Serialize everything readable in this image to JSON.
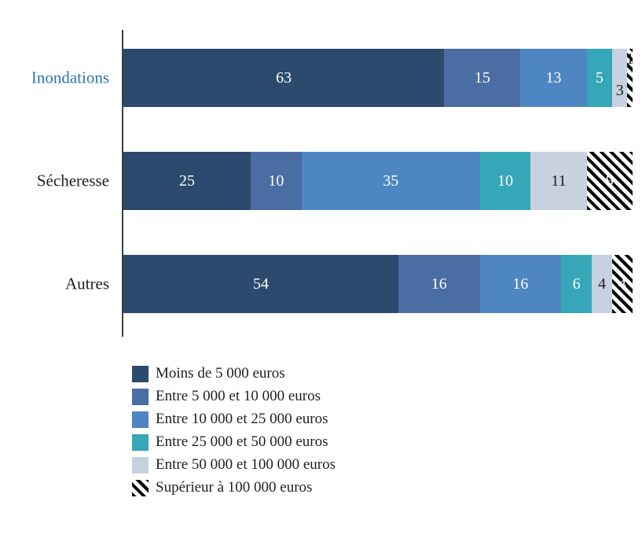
{
  "chart_data": {
    "type": "bar",
    "orientation": "horizontal",
    "stacked": true,
    "title": "",
    "xlabel": "",
    "ylabel": "",
    "xlim": [
      0,
      100
    ],
    "grid": false,
    "legend_position": "bottom-left",
    "categories": [
      "Inondations",
      "Sécheresse",
      "Autres"
    ],
    "category_label_colors": [
      "#2e74b5",
      "#1f1f1f",
      "#1f1f1f"
    ],
    "series": [
      {
        "name": "Moins de 5 000 euros",
        "color": "#2b4a6d",
        "values": [
          63,
          25,
          54
        ]
      },
      {
        "name": "Entre 5 000 et 10 000 euros",
        "color": "#4a6da4",
        "values": [
          15,
          10,
          16
        ]
      },
      {
        "name": "Entre 10 000 et 25 000 euros",
        "color": "#4d86c2",
        "values": [
          13,
          35,
          16
        ]
      },
      {
        "name": "Entre 25 000 et 50 000 euros",
        "color": "#35a7b9",
        "values": [
          5,
          10,
          6
        ]
      },
      {
        "name": "Entre 50 000 et 100 000 euros",
        "color": "#c8d1e0",
        "values": [
          3,
          11,
          4
        ]
      },
      {
        "name": "Supérieur à 100 000 euros",
        "color": "#0a0a0a",
        "pattern": "hatch",
        "values": [
          1,
          9,
          4
        ]
      }
    ],
    "value_labels": {
      "default_colors": [
        "#ffffff",
        "#ffffff",
        "#ffffff",
        "#ffffff",
        "#1f1f1f",
        "#ffffff"
      ],
      "overrides": [
        {
          "row": 0,
          "series": 4,
          "dy": 16
        },
        {
          "row": 0,
          "series": 5,
          "dy": -24,
          "color": "#1f1f1f"
        }
      ]
    }
  }
}
